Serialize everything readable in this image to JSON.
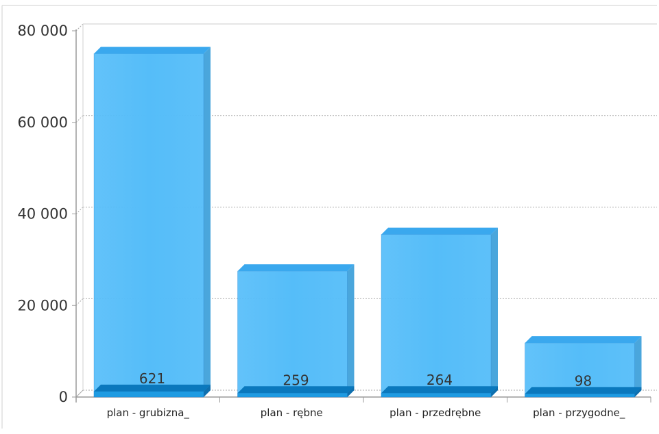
{
  "chart_data": {
    "type": "bar",
    "categories": [
      "plan - grubizna_",
      "plan - rębne",
      "plan - przedrębne",
      "plan - przygodne_"
    ],
    "series": [
      {
        "values": [
          75000,
          27500,
          35500,
          11800
        ]
      },
      {
        "values": [
          621,
          259,
          264,
          98
        ]
      }
    ],
    "data_labels": [
      "621",
      "259",
      "264",
      "98"
    ],
    "yticks": [
      "0",
      "20 000",
      "40 000",
      "60 000",
      "80 000"
    ],
    "ytick_values": [
      0,
      20000,
      40000,
      60000,
      80000
    ],
    "ylim": [
      0,
      80000
    ],
    "title": "",
    "xlabel": "",
    "ylabel": "",
    "grid": true,
    "style": "3d",
    "colors": {
      "bar_front": "#55bdf9",
      "bar_top": "#3aa8ee",
      "bar_side": "#4aa6dc",
      "small_front": "#1e9be2",
      "small_top": "#0a78bd",
      "grid": "#a8a8a8",
      "axis": "#9a9a9a"
    }
  }
}
